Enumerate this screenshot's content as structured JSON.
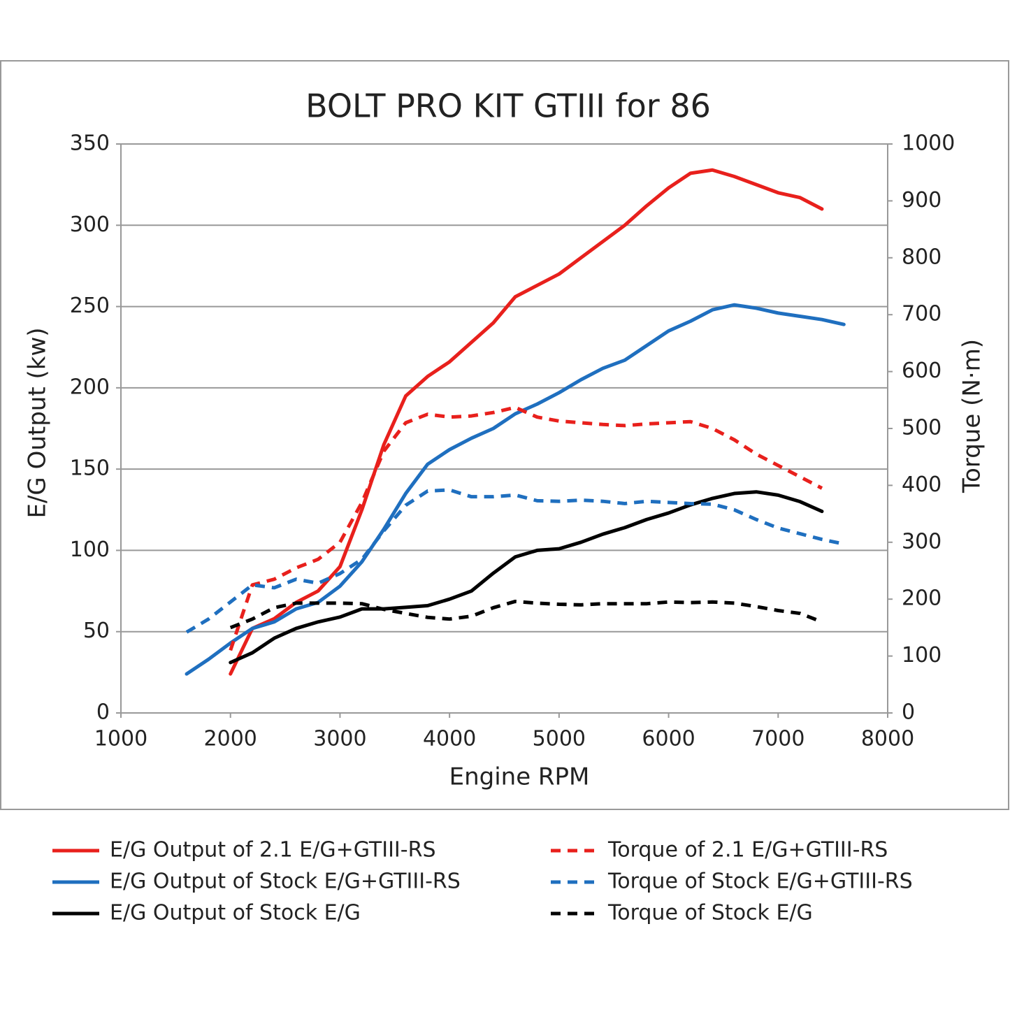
{
  "chart_data": {
    "type": "line",
    "title": "BOLT PRO KIT GTIII for 86",
    "x_label": "Engine RPM",
    "y_label": "E/G Output (kw)",
    "y2_label": "Torque (N·m)",
    "x": [
      1600,
      1800,
      2000,
      2200,
      2400,
      2600,
      2800,
      3000,
      3200,
      3400,
      3600,
      3800,
      4000,
      4200,
      4400,
      4600,
      4800,
      5000,
      5200,
      5400,
      5600,
      5800,
      6000,
      6200,
      6400,
      6600,
      6800,
      7000,
      7200,
      7400,
      7600
    ],
    "xlim": [
      1000,
      8000
    ],
    "xticks": [
      1000,
      2000,
      3000,
      4000,
      5000,
      6000,
      7000,
      8000
    ],
    "ylim": [
      0,
      350
    ],
    "yticks": [
      0,
      50,
      100,
      150,
      200,
      250,
      300,
      350
    ],
    "y2lim": [
      0,
      1000
    ],
    "y2ticks": [
      0,
      100,
      200,
      300,
      400,
      500,
      600,
      700,
      800,
      900,
      1000
    ],
    "grid": true,
    "series": [
      {
        "name": "E/G Output of 2.1 E/G+GTIII-RS",
        "color": "#e8201c",
        "dashed": false,
        "values": [
          null,
          null,
          24,
          52,
          58,
          68,
          75,
          90,
          125,
          165,
          195,
          207,
          216,
          228,
          240,
          256,
          263,
          270,
          280,
          290,
          300,
          312,
          323,
          332,
          334,
          330,
          325,
          320,
          317,
          310,
          null
        ]
      },
      {
        "name": "E/G Output of Stock E/G+GTIII-RS",
        "color": "#1f6fbf",
        "dashed": false,
        "values": [
          24,
          33,
          43,
          52,
          56,
          64,
          68,
          78,
          93,
          113,
          135,
          153,
          162,
          169,
          175,
          184,
          190,
          197,
          205,
          212,
          217,
          226,
          235,
          241,
          248,
          251,
          249,
          246,
          244,
          242,
          239
        ]
      },
      {
        "name": "E/G Output of Stock E/G",
        "color": "#000000",
        "dashed": false,
        "values": [
          null,
          null,
          31,
          37,
          46,
          52,
          56,
          59,
          64,
          64,
          65,
          66,
          70,
          75,
          86,
          96,
          100,
          101,
          105,
          110,
          114,
          119,
          123,
          128,
          132,
          135,
          136,
          134,
          130,
          124,
          null
        ]
      },
      {
        "name": "Torque of 2.1 E/G+GTIII-RS",
        "color": "#e8201c",
        "dashed": true,
        "axis": "y2",
        "values": [
          null,
          null,
          110,
          225,
          235,
          255,
          270,
          300,
          370,
          460,
          510,
          525,
          520,
          522,
          528,
          537,
          520,
          513,
          510,
          507,
          505,
          508,
          510,
          512,
          500,
          480,
          455,
          435,
          415,
          395,
          null
        ]
      },
      {
        "name": "Torque of Stock E/G+GTIII-RS",
        "color": "#1f6fbf",
        "dashed": true,
        "axis": "y2",
        "values": [
          142,
          165,
          195,
          225,
          220,
          235,
          228,
          245,
          270,
          320,
          365,
          390,
          392,
          380,
          380,
          383,
          373,
          372,
          374,
          372,
          368,
          372,
          370,
          368,
          367,
          357,
          340,
          325,
          315,
          305,
          297
        ]
      },
      {
        "name": "Torque of Stock E/G",
        "color": "#000000",
        "dashed": true,
        "axis": "y2",
        "values": [
          null,
          null,
          150,
          165,
          185,
          193,
          193,
          193,
          192,
          182,
          175,
          168,
          165,
          170,
          185,
          196,
          193,
          191,
          190,
          192,
          192,
          192,
          195,
          194,
          195,
          193,
          187,
          180,
          175,
          160,
          null
        ]
      }
    ]
  }
}
